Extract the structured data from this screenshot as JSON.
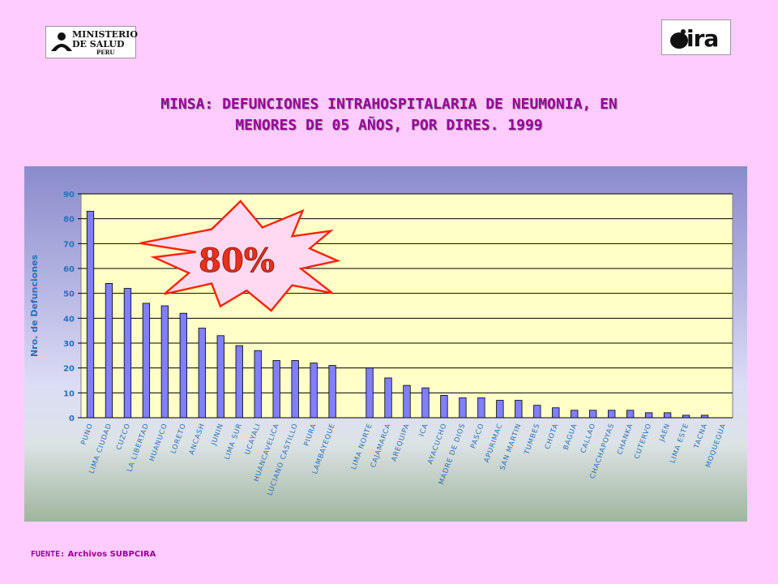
{
  "logos": {
    "left": {
      "lines": [
        "MINISTERIO",
        "DE SALUD",
        "PERU"
      ]
    },
    "right": {
      "text": "ira"
    }
  },
  "title_line1": "MINSA: DEFUNCIONES INTRAHOSPITALARIA DE NEUMONIA, EN",
  "title_line2": "MENORES DE 05 AÑOS, POR DIRES. 1999",
  "source": {
    "label": "FUENTE:",
    "text": "Archivos SUBPCIRA"
  },
  "colors": {
    "bar": "#7F7FFF",
    "plot_bg": "#FFFFC8",
    "axis_text": "#2E6FB7",
    "burst_stroke": "#FF2200",
    "burst_text": "#E8301C"
  },
  "chart_data": {
    "type": "bar",
    "title": "",
    "xlabel": "",
    "ylabel": "Nro. de Defunciones",
    "ylim": [
      0,
      90
    ],
    "yticks": [
      0,
      10,
      20,
      30,
      40,
      50,
      60,
      70,
      80,
      90
    ],
    "grid": true,
    "annotation": "80%",
    "categories": [
      "PUNO",
      "LIMA CIUDAD",
      "CUZCO",
      "LA LIBERTAD",
      "HUANUCO",
      "LORETO",
      "ANCASH",
      "JUNIN",
      "LIMA SUR",
      "UCAYALI",
      "HUANCAVELICA",
      "LUCIANO CASTILLO",
      "PIURA",
      "LAMBAYEQUE",
      "",
      "LIMA NORTE",
      "CAJAMARCA",
      "AREQUIPA",
      "ICA",
      "AYACUCHO",
      "MADRE DE DIOS",
      "PASCO",
      "APURIMAC",
      "SAN MARTIN",
      "TUMBES",
      "CHOTA",
      "BAGUA",
      "CALLAO",
      "CHACHAPOYAS",
      "CHANKA",
      "CUTERVO",
      "JAEN",
      "LIMA ESTE",
      "TACNA",
      "MOQUEGUA"
    ],
    "values": [
      83,
      54,
      52,
      46,
      45,
      42,
      36,
      33,
      29,
      27,
      23,
      23,
      22,
      21,
      null,
      20,
      16,
      13,
      12,
      9,
      8,
      8,
      7,
      7,
      5,
      4,
      3,
      3,
      3,
      3,
      2,
      2,
      1,
      1,
      0
    ]
  }
}
